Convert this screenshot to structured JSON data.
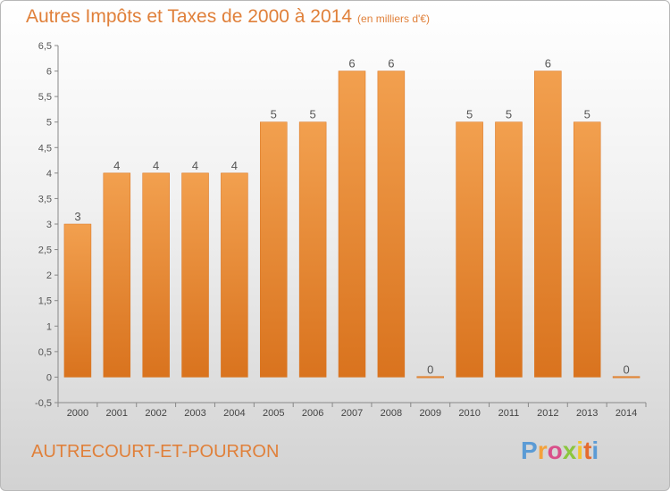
{
  "chart_data": {
    "type": "bar",
    "title": "Autres Impôts et Taxes de 2000 à 2014",
    "unit_label": "(en milliers d'€)",
    "categories": [
      "2000",
      "2001",
      "2002",
      "2003",
      "2004",
      "2005",
      "2006",
      "2007",
      "2008",
      "2009",
      "2010",
      "2011",
      "2012",
      "2013",
      "2014"
    ],
    "values": [
      3,
      4,
      4,
      4,
      4,
      5,
      5,
      6,
      6,
      0,
      5,
      5,
      6,
      5,
      0
    ],
    "value_labels": [
      "3",
      "4",
      "4",
      "4",
      "4",
      "5",
      "5",
      "6",
      "6",
      "0",
      "5",
      "5",
      "6",
      "5",
      "0"
    ],
    "ylim": [
      -0.5,
      6.5
    ],
    "yticks": [
      "-0,5",
      "0",
      "0,5",
      "1",
      "1,5",
      "2",
      "2,5",
      "3",
      "3,5",
      "4",
      "4,5",
      "5",
      "5,5",
      "6",
      "6,5"
    ],
    "xlabel": "",
    "ylabel": "",
    "grid": false,
    "bar_color": "#f2a04f",
    "bar_color_dark": "#d9731e"
  },
  "footer": {
    "commune": "AUTRECOURT-ET-POURRON",
    "logo_letters": [
      "P",
      "r",
      "o",
      "x",
      "i",
      "t",
      "i"
    ],
    "logo_colors": [
      "#5b9bd5",
      "#f4a23b",
      "#d94f8a",
      "#8cc63f",
      "#f4c430",
      "#e56b2f",
      "#5b9bd5"
    ]
  }
}
